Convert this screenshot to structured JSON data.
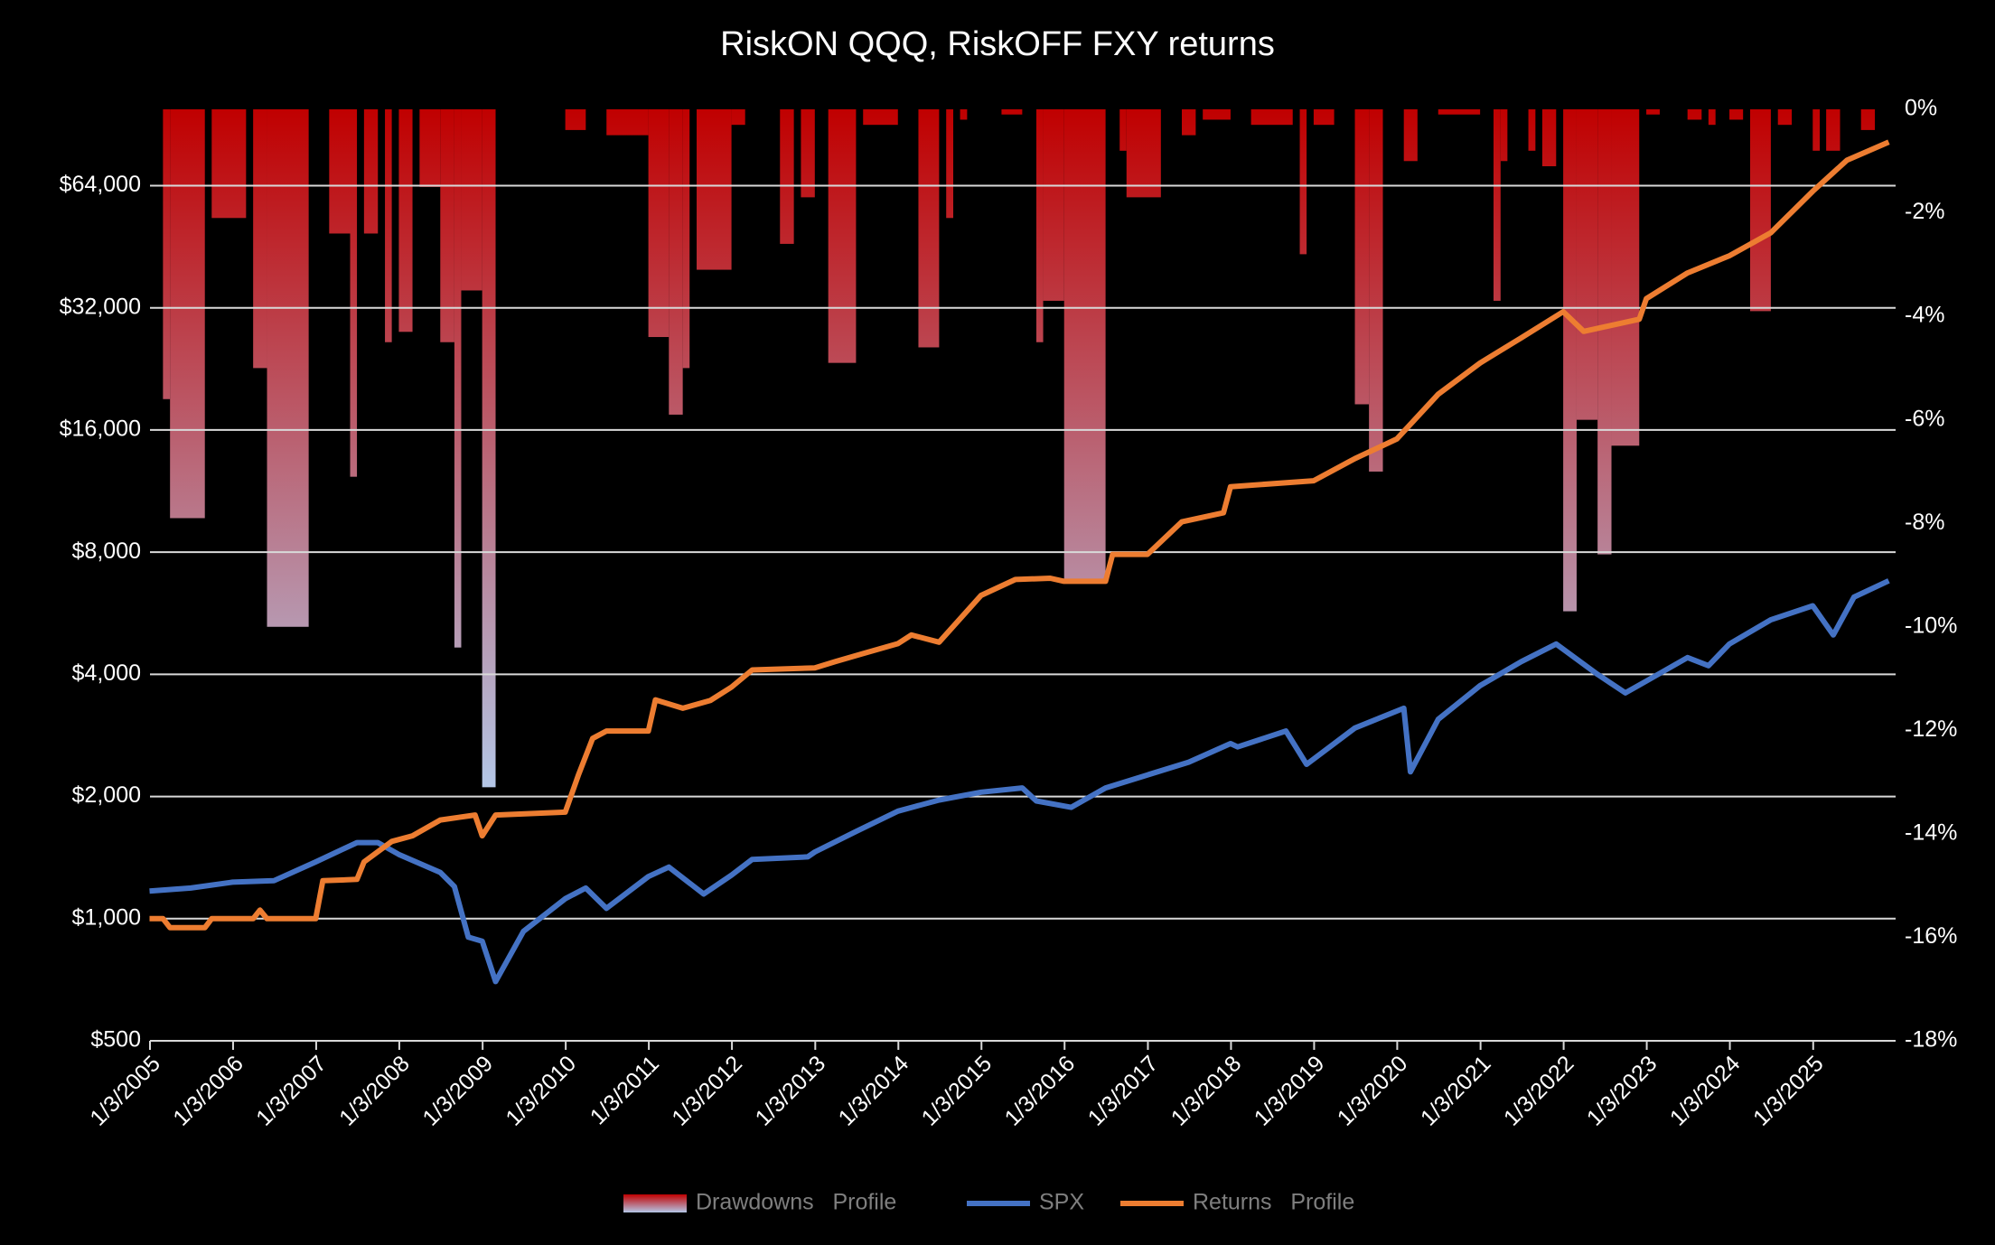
{
  "chart_data": {
    "type": "combo",
    "title": "RiskON QQQ, RiskOFF FXY returns",
    "xlim": [
      "2005-01-03",
      "2025-12-31"
    ],
    "xticks": [
      {
        "value": "2005-01-03",
        "label": "1/3/2005"
      },
      {
        "value": "2006-01-03",
        "label": "1/3/2006"
      },
      {
        "value": "2007-01-03",
        "label": "1/3/2007"
      },
      {
        "value": "2008-01-03",
        "label": "1/3/2008"
      },
      {
        "value": "2009-01-03",
        "label": "1/3/2009"
      },
      {
        "value": "2010-01-03",
        "label": "1/3/2010"
      },
      {
        "value": "2011-01-03",
        "label": "1/3/2011"
      },
      {
        "value": "2012-01-03",
        "label": "1/3/2012"
      },
      {
        "value": "2013-01-03",
        "label": "1/3/2013"
      },
      {
        "value": "2014-01-03",
        "label": "1/3/2014"
      },
      {
        "value": "2015-01-03",
        "label": "1/3/2015"
      },
      {
        "value": "2016-01-03",
        "label": "1/3/2016"
      },
      {
        "value": "2017-01-03",
        "label": "1/3/2017"
      },
      {
        "value": "2018-01-03",
        "label": "1/3/2018"
      },
      {
        "value": "2019-01-03",
        "label": "1/3/2019"
      },
      {
        "value": "2020-01-03",
        "label": "1/3/2020"
      },
      {
        "value": "2021-01-03",
        "label": "1/3/2021"
      },
      {
        "value": "2022-01-03",
        "label": "1/3/2022"
      },
      {
        "value": "2023-01-03",
        "label": "1/3/2023"
      },
      {
        "value": "2024-01-03",
        "label": "1/3/2024"
      },
      {
        "value": "2025-01-03",
        "label": "1/3/2025"
      }
    ],
    "ylog": true,
    "ylim": [
      500,
      98700
    ],
    "yticks": [
      {
        "value": 500,
        "label": "$500"
      },
      {
        "value": 1000,
        "label": "$1,000"
      },
      {
        "value": 2000,
        "label": "$2,000"
      },
      {
        "value": 4000,
        "label": "$4,000"
      },
      {
        "value": 8000,
        "label": "$8,000"
      },
      {
        "value": 16000,
        "label": "$16,000"
      },
      {
        "value": 32000,
        "label": "$32,000"
      },
      {
        "value": 64000,
        "label": "$64,000"
      }
    ],
    "y2lim": [
      -18,
      0
    ],
    "y2ticks": [
      {
        "value": 0,
        "label": "0%"
      },
      {
        "value": -2,
        "label": "-2%"
      },
      {
        "value": -4,
        "label": "-4%"
      },
      {
        "value": -6,
        "label": "-6%"
      },
      {
        "value": -8,
        "label": "-8%"
      },
      {
        "value": -10,
        "label": "-10%"
      },
      {
        "value": -12,
        "label": "-12%"
      },
      {
        "value": -14,
        "label": "-14%"
      },
      {
        "value": -16,
        "label": "-16%"
      },
      {
        "value": -18,
        "label": "-18%"
      }
    ],
    "grid": true,
    "grid_color": "#d9d9d9",
    "legend": "bottom",
    "series": [
      {
        "name": "Drawdowns   Profile",
        "type": "bar",
        "axis": "y2",
        "color": "#c00000",
        "gradient_to": "#b4c7e7",
        "x": [
          "2005-03",
          "2005-04",
          "2005-10",
          "2006-04",
          "2006-06",
          "2007-03",
          "2007-06",
          "2007-08",
          "2007-11",
          "2008-01",
          "2008-04",
          "2008-07",
          "2008-09",
          "2008-10",
          "2009-01",
          "2010-01",
          "2010-07",
          "2011-01",
          "2011-04",
          "2011-06",
          "2011-08",
          "2012-01",
          "2012-08",
          "2012-11",
          "2013-03",
          "2013-08",
          "2014-04",
          "2014-08",
          "2014-10",
          "2015-04",
          "2015-09",
          "2015-10",
          "2016-01",
          "2016-09",
          "2016-10",
          "2017-06",
          "2017-09",
          "2018-04",
          "2018-11",
          "2019-01",
          "2019-07",
          "2019-09",
          "2020-02",
          "2020-07",
          "2021-03",
          "2021-04",
          "2021-08",
          "2021-10",
          "2022-01",
          "2022-03",
          "2022-06",
          "2022-08",
          "2023-01",
          "2023-07",
          "2023-10",
          "2024-01",
          "2024-04",
          "2024-08",
          "2025-01",
          "2025-03",
          "2025-08"
        ],
        "x_end": [
          "2005-04",
          "2005-09",
          "2006-03",
          "2006-06",
          "2006-12",
          "2007-06",
          "2007-07",
          "2007-10",
          "2007-12",
          "2008-03",
          "2008-07",
          "2008-09",
          "2008-10",
          "2009-01",
          "2009-03",
          "2010-04",
          "2011-01",
          "2011-04",
          "2011-06",
          "2011-07",
          "2012-01",
          "2012-03",
          "2012-10",
          "2013-01",
          "2013-07",
          "2014-01",
          "2014-07",
          "2014-09",
          "2014-11",
          "2015-07",
          "2015-10",
          "2016-01",
          "2016-07",
          "2016-10",
          "2017-03",
          "2017-08",
          "2018-01",
          "2018-10",
          "2018-12",
          "2019-04",
          "2019-09",
          "2019-11",
          "2020-04",
          "2021-01",
          "2021-04",
          "2021-05",
          "2021-09",
          "2021-12",
          "2022-03",
          "2022-06",
          "2022-08",
          "2022-12",
          "2023-03",
          "2023-09",
          "2023-11",
          "2024-03",
          "2024-07",
          "2024-10",
          "2025-02",
          "2025-05",
          "2025-10"
        ],
        "values": [
          -5.6,
          -7.9,
          -2.1,
          -5.0,
          -10.0,
          -2.4,
          -7.1,
          -2.4,
          -4.5,
          -4.3,
          -1.5,
          -4.5,
          -10.4,
          -3.5,
          -13.1,
          -0.4,
          -0.5,
          -4.4,
          -5.9,
          -5.0,
          -3.1,
          -0.3,
          -2.6,
          -1.7,
          -4.9,
          -0.3,
          -4.6,
          -2.1,
          -0.2,
          -0.1,
          -4.5,
          -3.7,
          -9.1,
          -0.8,
          -1.7,
          -0.5,
          -0.2,
          -0.3,
          -2.8,
          -0.3,
          -5.7,
          -7.0,
          -1.0,
          -0.1,
          -3.7,
          -1.0,
          -0.8,
          -1.1,
          -9.7,
          -6.0,
          -8.6,
          -6.5,
          -0.1,
          -0.2,
          -0.3,
          -0.2,
          -3.9,
          -0.3,
          -0.8,
          -0.8,
          -0.4
        ]
      },
      {
        "name": "SPX",
        "type": "line",
        "color": "#4472c4",
        "x": [
          "2005-01",
          "2005-07",
          "2006-01",
          "2006-07",
          "2007-01",
          "2007-07",
          "2007-10",
          "2008-01",
          "2008-07",
          "2008-09",
          "2008-11",
          "2009-01",
          "2009-03",
          "2009-07",
          "2010-01",
          "2010-04",
          "2010-07",
          "2011-01",
          "2011-04",
          "2011-09",
          "2012-01",
          "2012-04",
          "2012-12",
          "2013-01",
          "2013-07",
          "2014-01",
          "2014-07",
          "2015-01",
          "2015-07",
          "2015-09",
          "2016-02",
          "2016-07",
          "2017-01",
          "2017-07",
          "2018-01",
          "2018-02",
          "2018-09",
          "2018-12",
          "2019-07",
          "2020-02",
          "2020-03",
          "2020-07",
          "2021-01",
          "2021-07",
          "2021-12",
          "2022-06",
          "2022-10",
          "2023-01",
          "2023-07",
          "2023-10",
          "2024-01",
          "2024-07",
          "2025-01",
          "2025-04",
          "2025-07",
          "2025-12"
        ],
        "values": [
          1170,
          1190,
          1230,
          1240,
          1380,
          1540,
          1540,
          1440,
          1300,
          1200,
          900,
          880,
          700,
          930,
          1120,
          1190,
          1060,
          1270,
          1340,
          1150,
          1280,
          1400,
          1420,
          1460,
          1640,
          1840,
          1960,
          2050,
          2100,
          1950,
          1880,
          2100,
          2260,
          2430,
          2700,
          2650,
          2900,
          2400,
          2950,
          3300,
          2300,
          3100,
          3750,
          4300,
          4750,
          4000,
          3600,
          3850,
          4400,
          4200,
          4750,
          5450,
          5900,
          5000,
          6200,
          6800
        ]
      },
      {
        "name": "Returns   Profile",
        "type": "line",
        "color": "#ed7d31",
        "x": [
          "2005-01",
          "2005-03",
          "2005-04",
          "2005-09",
          "2005-10",
          "2006-04",
          "2006-05",
          "2006-06",
          "2007-01",
          "2007-02",
          "2007-07",
          "2007-08",
          "2007-12",
          "2008-03",
          "2008-07",
          "2008-12",
          "2009-01",
          "2009-03",
          "2010-01",
          "2010-03",
          "2010-05",
          "2010-07",
          "2011-01",
          "2011-02",
          "2011-06",
          "2011-10",
          "2012-01",
          "2012-04",
          "2013-01",
          "2013-04",
          "2013-08",
          "2014-01",
          "2014-03",
          "2014-07",
          "2015-01",
          "2015-06",
          "2015-11",
          "2016-01",
          "2016-07",
          "2016-08",
          "2017-01",
          "2017-06",
          "2017-12",
          "2018-01",
          "2019-01",
          "2019-07",
          "2020-01",
          "2020-07",
          "2021-01",
          "2021-07",
          "2022-01",
          "2022-04",
          "2022-12",
          "2023-01",
          "2023-07",
          "2024-01",
          "2024-07",
          "2025-01",
          "2025-06",
          "2025-12"
        ],
        "values": [
          1000,
          1000,
          950,
          950,
          1000,
          1000,
          1050,
          1000,
          1000,
          1240,
          1250,
          1380,
          1550,
          1600,
          1750,
          1800,
          1600,
          1800,
          1830,
          2270,
          2780,
          2900,
          2900,
          3460,
          3300,
          3450,
          3720,
          4100,
          4150,
          4300,
          4500,
          4760,
          5000,
          4800,
          6260,
          6850,
          6900,
          6780,
          6780,
          7900,
          7900,
          9500,
          10000,
          11600,
          12000,
          13600,
          15200,
          19600,
          23400,
          27000,
          31300,
          28000,
          30000,
          33700,
          39000,
          43000,
          49000,
          62000,
          74000,
          82000
        ]
      }
    ]
  }
}
